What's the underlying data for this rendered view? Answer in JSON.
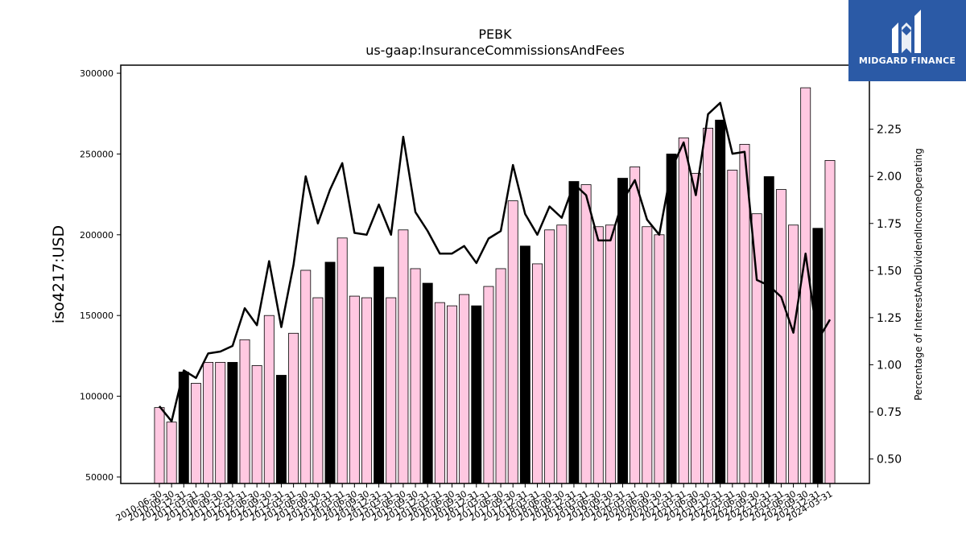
{
  "chart_data": {
    "type": "bar",
    "title": "PEBK",
    "subtitle": "us-gaap:InsuranceCommissionsAndFees",
    "ylabel": "iso4217:USD",
    "y2label": "Percentage of InterestAndDividendIncomeOperating",
    "ylim": [
      46000,
      305000
    ],
    "y2lim": [
      0.37,
      2.59
    ],
    "yticks": [
      50000,
      100000,
      150000,
      200000,
      250000,
      300000
    ],
    "y2ticks": [
      0.5,
      0.75,
      1.0,
      1.25,
      1.5,
      1.75,
      2.0,
      2.25
    ],
    "grid": false,
    "bar_colors": {
      "q4": "#000000",
      "other": "#ffc8e1"
    },
    "line_color": "#000000",
    "categories": [
      "2010-06-30",
      "2010-09-30",
      "2010-12-31",
      "2011-03-31",
      "2011-06-30",
      "2011-09-30",
      "2011-12-31",
      "2012-03-31",
      "2012-06-30",
      "2012-09-30",
      "2012-12-31",
      "2013-03-31",
      "2013-06-30",
      "2013-09-30",
      "2013-12-31",
      "2014-03-31",
      "2014-06-30",
      "2014-09-30",
      "2014-12-31",
      "2015-03-31",
      "2015-06-30",
      "2015-09-30",
      "2015-12-31",
      "2016-03-31",
      "2016-06-30",
      "2016-09-30",
      "2016-12-31",
      "2017-03-31",
      "2017-06-30",
      "2017-09-30",
      "2017-12-31",
      "2018-03-31",
      "2018-06-30",
      "2018-09-30",
      "2018-12-31",
      "2019-03-31",
      "2019-06-30",
      "2019-09-30",
      "2019-12-31",
      "2020-03-31",
      "2020-06-30",
      "2020-09-30",
      "2020-12-31",
      "2021-03-31",
      "2021-06-30",
      "2021-09-30",
      "2021-12-31",
      "2022-03-31",
      "2022-06-30",
      "2022-09-30",
      "2022-12-31",
      "2023-03-31",
      "2023-06-30",
      "2023-09-30",
      "2023-12-31",
      "2024-03-31"
    ],
    "xtick_labels": [
      "2010-06-30",
      "2010-09-30",
      "2010-12-31",
      "2011-03-31",
      "2011-06-30",
      "2011-09-30",
      "2011-12-31",
      "2012-03-31",
      "2012-06-30",
      "2012-09-30",
      "2012-12-31",
      "2013-03-31",
      "2013-06-30",
      "2013-09-30",
      "2013-12-31",
      "2014-03-31",
      "2014-06-30",
      "2014-09-30",
      "2014-12-31",
      "2015-03-31",
      "2015-06-30",
      "2015-09-30",
      "2015-12-31",
      "2016-03-31",
      "2016-06-30",
      "2016-09-30",
      "2016-12-31",
      "2017-03-31",
      "2017-06-30",
      "2017-09-30",
      "2017-12-31",
      "2018-03-31",
      "2018-06-30",
      "2018-09-30",
      "2018-12-31",
      "2019-03-31",
      "2019-06-30",
      "2019-09-30",
      "2019-12-31",
      "2020-03-31",
      "2020-06-30",
      "2020-09-30",
      "2020-12-31",
      "2021-03-31",
      "2021-06-30",
      "2021-09-30",
      "2021-12-31",
      "2022-03-31",
      "2022-06-30",
      "2022-09-30",
      "2022-12-31",
      "2023-03-31",
      "2023-06-30",
      "2023-09-30",
      "2023-12-31",
      "2024-03-31"
    ],
    "series": [
      {
        "type": "bar",
        "values": [
          93000,
          84000,
          115000,
          108000,
          121000,
          121000,
          121000,
          135000,
          119000,
          150000,
          113000,
          139000,
          178000,
          161000,
          183000,
          198000,
          162000,
          161000,
          180000,
          161000,
          203000,
          179000,
          170000,
          158000,
          156000,
          163000,
          156000,
          168000,
          179000,
          221000,
          193000,
          182000,
          203000,
          206000,
          233000,
          231000,
          205000,
          206000,
          235000,
          242000,
          205000,
          200000,
          250000,
          260000,
          238000,
          266000,
          271000,
          240000,
          256000,
          213000,
          236000,
          228000,
          206000,
          291000,
          204000,
          246000
        ]
      },
      {
        "type": "line",
        "axis": "right",
        "values": [
          0.78,
          0.7,
          0.97,
          0.93,
          1.06,
          1.07,
          1.1,
          1.3,
          1.21,
          1.55,
          1.2,
          1.53,
          2.0,
          1.75,
          1.93,
          2.07,
          1.7,
          1.69,
          1.85,
          1.69,
          2.21,
          1.81,
          1.71,
          1.59,
          1.59,
          1.63,
          1.54,
          1.67,
          1.71,
          2.06,
          1.8,
          1.69,
          1.84,
          1.78,
          1.96,
          1.9,
          1.66,
          1.66,
          1.87,
          1.98,
          1.77,
          1.69,
          2.04,
          2.18,
          1.9,
          2.33,
          2.39,
          2.12,
          2.13,
          1.45,
          1.42,
          1.36,
          1.17,
          1.59,
          1.13,
          1.24
        ]
      }
    ]
  },
  "logo": {
    "text": "MIDGARD FINANCE"
  }
}
